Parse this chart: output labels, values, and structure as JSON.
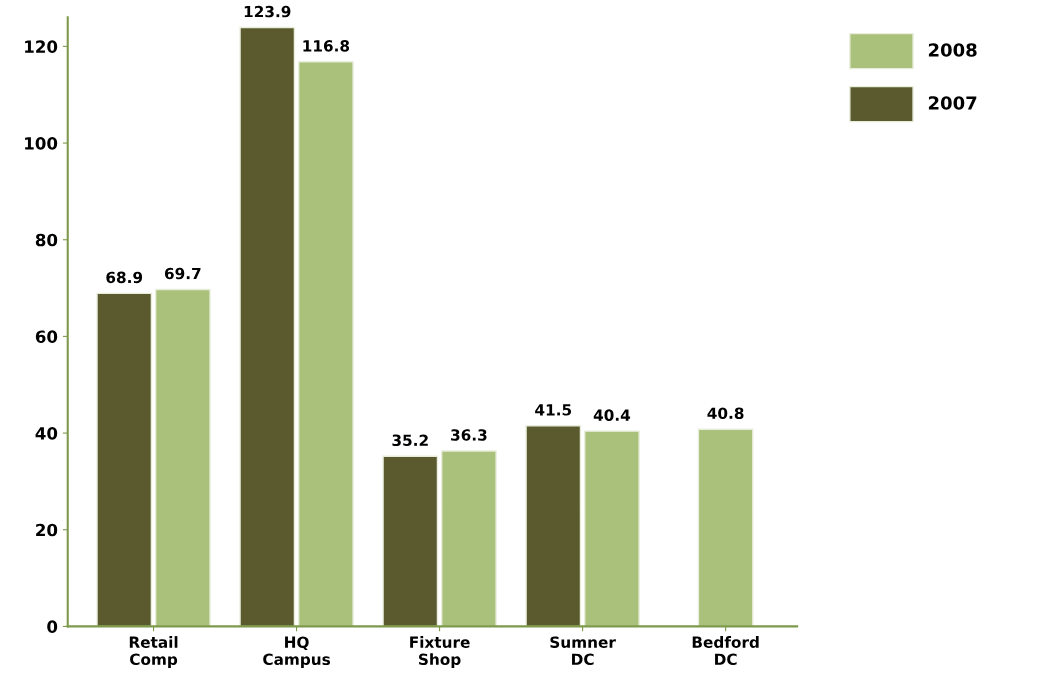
{
  "chart_data": {
    "type": "bar",
    "categories": [
      "Retail\nComp",
      "HQ\nCampus",
      "Fixture\nShop",
      "Sumner\nDC",
      "Bedford\nDC"
    ],
    "series": [
      {
        "name": "2007",
        "color": "#5a5a2e",
        "values": [
          68.9,
          123.9,
          35.2,
          41.5,
          null
        ]
      },
      {
        "name": "2008",
        "color": "#a9c17a",
        "values": [
          69.7,
          116.8,
          36.3,
          40.4,
          40.8
        ]
      }
    ],
    "ylim": [
      0,
      126
    ],
    "yticks": [
      0,
      20,
      40,
      60,
      80,
      100,
      120
    ],
    "data_labels": true,
    "grid": false,
    "legend": "top right"
  }
}
